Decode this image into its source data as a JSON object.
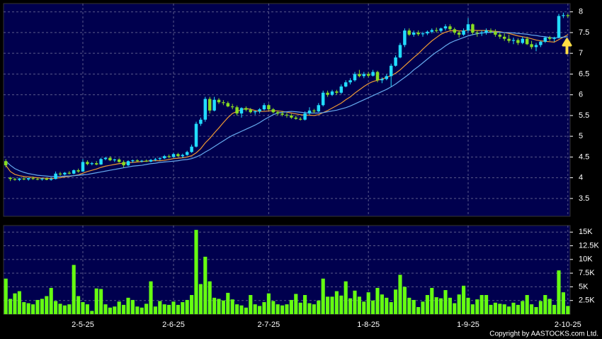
{
  "chart_data": {
    "type": "candlestick",
    "categories": [
      null,
      null,
      null,
      null,
      null,
      null,
      null,
      null,
      null,
      null,
      null,
      null,
      null,
      null,
      null,
      null,
      null,
      "2-5-25",
      null,
      null,
      null,
      null,
      null,
      null,
      null,
      null,
      null,
      null,
      null,
      null,
      null,
      null,
      null,
      null,
      null,
      null,
      null,
      "2-6-25",
      null,
      null,
      null,
      null,
      null,
      null,
      null,
      null,
      null,
      null,
      null,
      null,
      null,
      null,
      null,
      null,
      null,
      null,
      null,
      null,
      "2-7-25",
      null,
      null,
      null,
      null,
      null,
      null,
      null,
      null,
      null,
      null,
      null,
      null,
      null,
      null,
      null,
      null,
      null,
      null,
      null,
      null,
      null,
      "1-8-25",
      null,
      null,
      null,
      null,
      null,
      null,
      null,
      null,
      null,
      null,
      null,
      null,
      null,
      null,
      null,
      null,
      null,
      null,
      null,
      null,
      null,
      "1-9-25",
      null,
      null,
      null,
      null,
      null,
      null,
      null,
      null,
      null,
      null,
      null,
      null,
      null,
      null,
      null,
      null,
      null,
      null,
      null,
      null,
      null,
      "2-10-25"
    ],
    "ohlc": [
      [
        4.4,
        4.45,
        4.25,
        4.3
      ],
      [
        4.0,
        4.02,
        3.92,
        3.97
      ],
      [
        3.97,
        4.0,
        3.93,
        3.95
      ],
      [
        3.95,
        4.0,
        3.92,
        3.98
      ],
      [
        3.98,
        4.02,
        3.94,
        3.96
      ],
      [
        3.96,
        4.0,
        3.93,
        3.99
      ],
      [
        3.99,
        4.03,
        3.95,
        3.97
      ],
      [
        3.97,
        4.0,
        3.94,
        3.96
      ],
      [
        3.96,
        3.99,
        3.93,
        3.98
      ],
      [
        3.98,
        4.0,
        3.94,
        3.95
      ],
      [
        3.95,
        4.0,
        3.93,
        3.97
      ],
      [
        3.97,
        4.15,
        3.96,
        4.1
      ],
      [
        4.1,
        4.14,
        4.05,
        4.08
      ],
      [
        4.08,
        4.14,
        4.06,
        4.12
      ],
      [
        4.12,
        4.16,
        4.08,
        4.1
      ],
      [
        4.1,
        4.2,
        4.08,
        4.18
      ],
      [
        4.18,
        4.22,
        4.12,
        4.15
      ],
      [
        4.15,
        4.45,
        4.14,
        4.38
      ],
      [
        4.38,
        4.42,
        4.3,
        4.33
      ],
      [
        4.33,
        4.38,
        4.3,
        4.35
      ],
      [
        4.35,
        4.4,
        4.3,
        4.32
      ],
      [
        4.32,
        4.48,
        4.31,
        4.45
      ],
      [
        4.45,
        4.5,
        4.42,
        4.48
      ],
      [
        4.48,
        4.52,
        4.4,
        4.42
      ],
      [
        4.42,
        4.46,
        4.38,
        4.44
      ],
      [
        4.44,
        4.47,
        4.36,
        4.38
      ],
      [
        4.38,
        4.42,
        4.25,
        4.3
      ],
      [
        4.3,
        4.42,
        4.28,
        4.4
      ],
      [
        4.4,
        4.44,
        4.36,
        4.42
      ],
      [
        4.42,
        4.45,
        4.38,
        4.4
      ],
      [
        4.4,
        4.43,
        4.37,
        4.41
      ],
      [
        4.41,
        4.44,
        4.38,
        4.39
      ],
      [
        4.39,
        4.45,
        4.37,
        4.43
      ],
      [
        4.43,
        4.48,
        4.4,
        4.45
      ],
      [
        4.45,
        4.5,
        4.42,
        4.47
      ],
      [
        4.47,
        4.55,
        4.45,
        4.52
      ],
      [
        4.52,
        4.56,
        4.47,
        4.5
      ],
      [
        4.5,
        4.6,
        4.48,
        4.57
      ],
      [
        4.57,
        4.6,
        4.5,
        4.52
      ],
      [
        4.52,
        4.58,
        4.48,
        4.55
      ],
      [
        4.55,
        4.65,
        4.53,
        4.62
      ],
      [
        4.62,
        4.8,
        4.6,
        4.75
      ],
      [
        4.75,
        5.35,
        4.73,
        5.3
      ],
      [
        5.3,
        5.45,
        5.25,
        5.4
      ],
      [
        5.4,
        5.95,
        5.35,
        5.9
      ],
      [
        5.9,
        5.95,
        5.55,
        5.62
      ],
      [
        5.62,
        5.95,
        5.6,
        5.88
      ],
      [
        5.88,
        5.92,
        5.78,
        5.82
      ],
      [
        5.82,
        5.87,
        5.75,
        5.8
      ],
      [
        5.8,
        5.84,
        5.7,
        5.72
      ],
      [
        5.72,
        5.78,
        5.65,
        5.7
      ],
      [
        5.7,
        5.74,
        5.5,
        5.55
      ],
      [
        5.55,
        5.7,
        5.45,
        5.68
      ],
      [
        5.68,
        5.72,
        5.6,
        5.64
      ],
      [
        5.64,
        5.68,
        5.55,
        5.58
      ],
      [
        5.58,
        5.62,
        5.52,
        5.6
      ],
      [
        5.6,
        5.68,
        5.55,
        5.65
      ],
      [
        5.65,
        5.8,
        5.62,
        5.75
      ],
      [
        5.75,
        5.78,
        5.62,
        5.65
      ],
      [
        5.65,
        5.68,
        5.55,
        5.58
      ],
      [
        5.58,
        5.62,
        5.5,
        5.55
      ],
      [
        5.55,
        5.6,
        5.48,
        5.52
      ],
      [
        5.52,
        5.56,
        5.45,
        5.5
      ],
      [
        5.5,
        5.54,
        5.42,
        5.45
      ],
      [
        5.45,
        5.5,
        5.4,
        5.42
      ],
      [
        5.42,
        5.46,
        5.38,
        5.4
      ],
      [
        5.4,
        5.6,
        5.38,
        5.55
      ],
      [
        5.55,
        5.7,
        5.52,
        5.62
      ],
      [
        5.62,
        5.66,
        5.55,
        5.6
      ],
      [
        5.6,
        5.8,
        5.58,
        5.75
      ],
      [
        5.75,
        6.1,
        5.72,
        6.05
      ],
      [
        6.05,
        6.1,
        5.95,
        6.0
      ],
      [
        6.0,
        6.12,
        5.97,
        6.08
      ],
      [
        6.08,
        6.12,
        6.0,
        6.05
      ],
      [
        6.05,
        6.25,
        6.02,
        6.2
      ],
      [
        6.2,
        6.35,
        6.18,
        6.3
      ],
      [
        6.3,
        6.4,
        6.25,
        6.35
      ],
      [
        6.35,
        6.55,
        6.32,
        6.5
      ],
      [
        6.5,
        6.6,
        6.42,
        6.45
      ],
      [
        6.45,
        6.55,
        6.4,
        6.5
      ],
      [
        6.5,
        6.55,
        6.42,
        6.46
      ],
      [
        6.46,
        6.6,
        6.44,
        6.55
      ],
      [
        6.55,
        6.58,
        6.3,
        6.35
      ],
      [
        6.35,
        6.42,
        6.28,
        6.38
      ],
      [
        6.38,
        6.5,
        6.35,
        6.45
      ],
      [
        6.45,
        6.75,
        6.2,
        6.7
      ],
      [
        6.7,
        6.95,
        6.68,
        6.9
      ],
      [
        6.9,
        7.25,
        6.88,
        7.2
      ],
      [
        7.2,
        7.6,
        7.15,
        7.55
      ],
      [
        7.55,
        7.6,
        7.42,
        7.45
      ],
      [
        7.45,
        7.55,
        7.4,
        7.5
      ],
      [
        7.5,
        7.55,
        7.42,
        7.46
      ],
      [
        7.46,
        7.52,
        7.4,
        7.48
      ],
      [
        7.48,
        7.55,
        7.44,
        7.52
      ],
      [
        7.52,
        7.6,
        7.48,
        7.56
      ],
      [
        7.56,
        7.62,
        7.5,
        7.54
      ],
      [
        7.54,
        7.62,
        7.5,
        7.6
      ],
      [
        7.6,
        7.7,
        7.55,
        7.65
      ],
      [
        7.65,
        7.7,
        7.55,
        7.58
      ],
      [
        7.58,
        7.62,
        7.45,
        7.5
      ],
      [
        7.5,
        7.55,
        7.38,
        7.45
      ],
      [
        7.45,
        7.6,
        7.42,
        7.55
      ],
      [
        7.55,
        7.85,
        7.5,
        7.7
      ],
      [
        7.7,
        7.72,
        7.45,
        7.5
      ],
      [
        7.5,
        7.55,
        7.4,
        7.48
      ],
      [
        7.48,
        7.55,
        7.42,
        7.5
      ],
      [
        7.5,
        7.6,
        7.45,
        7.55
      ],
      [
        7.55,
        7.6,
        7.48,
        7.52
      ],
      [
        7.52,
        7.58,
        7.4,
        7.45
      ],
      [
        7.45,
        7.5,
        7.35,
        7.4
      ],
      [
        7.4,
        7.48,
        7.3,
        7.35
      ],
      [
        7.35,
        7.45,
        7.25,
        7.3
      ],
      [
        7.3,
        7.38,
        7.22,
        7.32
      ],
      [
        7.32,
        7.36,
        7.2,
        7.25
      ],
      [
        7.25,
        7.4,
        7.22,
        7.35
      ],
      [
        7.35,
        7.4,
        7.2,
        7.22
      ],
      [
        7.22,
        7.3,
        7.1,
        7.15
      ],
      [
        7.15,
        7.25,
        7.05,
        7.2
      ],
      [
        7.2,
        7.3,
        7.15,
        7.28
      ],
      [
        7.28,
        7.4,
        7.25,
        7.38
      ],
      [
        7.38,
        7.42,
        7.3,
        7.35
      ],
      [
        7.35,
        7.4,
        7.28,
        7.38
      ],
      [
        7.38,
        7.95,
        7.36,
        7.9
      ],
      [
        7.9,
        7.98,
        7.85,
        7.92
      ],
      [
        7.92,
        7.95,
        7.86,
        7.9
      ]
    ],
    "up_color": "#22ddff",
    "down_color": "#88dd22",
    "ylim": [
      3.07,
      8.2
    ],
    "yticks": [
      3.5,
      4,
      4.5,
      5,
      5.5,
      6,
      6.5,
      7,
      7.5,
      8
    ],
    "grid": true,
    "moving_averages": [
      {
        "color": "#ee9933",
        "values": [
          4.3,
          4.15,
          4.08,
          4.05,
          4.03,
          4.02,
          4.01,
          4.0,
          3.99,
          3.99,
          3.98,
          3.99,
          4.0,
          4.02,
          4.03,
          4.05,
          4.07,
          4.11,
          4.15,
          4.18,
          4.21,
          4.25,
          4.28,
          4.3,
          4.32,
          4.34,
          4.35,
          4.36,
          4.37,
          4.38,
          4.39,
          4.4,
          4.41,
          4.41,
          4.41,
          4.42,
          4.44,
          4.46,
          4.47,
          4.48,
          4.5,
          4.53,
          4.6,
          4.7,
          4.84,
          4.95,
          5.08,
          5.2,
          5.33,
          5.45,
          5.55,
          5.6,
          5.64,
          5.67,
          5.65,
          5.62,
          5.6,
          5.6,
          5.61,
          5.62,
          5.61,
          5.6,
          5.58,
          5.56,
          5.54,
          5.52,
          5.51,
          5.51,
          5.5,
          5.52,
          5.57,
          5.62,
          5.68,
          5.74,
          5.8,
          5.88,
          5.95,
          6.04,
          6.12,
          6.2,
          6.27,
          6.32,
          6.35,
          6.38,
          6.42,
          6.46,
          6.52,
          6.6,
          6.7,
          6.8,
          6.9,
          6.99,
          7.1,
          7.2,
          7.3,
          7.38,
          7.46,
          7.51,
          7.54,
          7.55,
          7.54,
          7.54,
          7.56,
          7.56,
          7.55,
          7.55,
          7.55,
          7.54,
          7.53,
          7.52,
          7.5,
          7.48,
          7.45,
          7.42,
          7.4,
          7.38,
          7.35,
          7.32,
          7.3,
          7.29,
          7.28,
          7.27,
          7.33,
          7.39,
          7.45
        ]
      },
      {
        "color": "#66aaee",
        "values": [
          4.4,
          4.3,
          4.22,
          4.17,
          4.13,
          4.1,
          4.08,
          4.06,
          4.05,
          4.04,
          4.03,
          4.03,
          4.03,
          4.04,
          4.04,
          4.05,
          4.06,
          4.07,
          4.08,
          4.1,
          4.12,
          4.14,
          4.16,
          4.18,
          4.2,
          4.22,
          4.24,
          4.26,
          4.28,
          4.29,
          4.3,
          4.32,
          4.34,
          4.35,
          4.37,
          4.38,
          4.39,
          4.4,
          4.41,
          4.43,
          4.44,
          4.46,
          4.5,
          4.55,
          4.62,
          4.68,
          4.75,
          4.82,
          4.89,
          4.96,
          5.02,
          5.07,
          5.12,
          5.17,
          5.22,
          5.27,
          5.33,
          5.4,
          5.46,
          5.52,
          5.56,
          5.58,
          5.59,
          5.6,
          5.59,
          5.58,
          5.57,
          5.56,
          5.56,
          5.56,
          5.57,
          5.59,
          5.61,
          5.63,
          5.66,
          5.69,
          5.73,
          5.78,
          5.83,
          5.88,
          5.93,
          5.98,
          6.03,
          6.08,
          6.13,
          6.19,
          6.26,
          6.34,
          6.42,
          6.5,
          6.6,
          6.68,
          6.77,
          6.86,
          6.95,
          7.03,
          7.1,
          7.18,
          7.25,
          7.3,
          7.34,
          7.38,
          7.42,
          7.45,
          7.47,
          7.49,
          7.5,
          7.51,
          7.51,
          7.51,
          7.5,
          7.5,
          7.49,
          7.48,
          7.47,
          7.46,
          7.44,
          7.43,
          7.41,
          7.4,
          7.38,
          7.37,
          7.38,
          7.39,
          7.4
        ]
      }
    ],
    "volume": {
      "color": "#66ff11",
      "values": [
        6500,
        2800,
        3800,
        4200,
        2200,
        2000,
        1800,
        2600,
        2800,
        3300,
        4800,
        2400,
        1900,
        1600,
        1800,
        9000,
        3300,
        2200,
        1800,
        600,
        4700,
        4600,
        1800,
        1200,
        1400,
        2300,
        1700,
        3000,
        2600,
        1400,
        1200,
        1900,
        6000,
        1400,
        2400,
        1800,
        1700,
        2300,
        1700,
        2200,
        2600,
        3500,
        15400,
        5500,
        10500,
        6000,
        3000,
        2800,
        2500,
        3900,
        2700,
        1800,
        1600,
        1200,
        3500,
        1800,
        1500,
        2200,
        3800,
        2400,
        1800,
        1600,
        1800,
        2600,
        3700,
        2100,
        3500,
        2000,
        1800,
        2500,
        6500,
        3200,
        3200,
        4200,
        3400,
        6000,
        2900,
        4300,
        3200,
        2300,
        4000,
        2500,
        4800,
        3600,
        3000,
        2200,
        4500,
        7200,
        5000,
        3000,
        2600,
        1300,
        2300,
        3500,
        4800,
        3100,
        2900,
        4400,
        3000,
        2000,
        3600,
        5200,
        3000,
        1800,
        2700,
        3500,
        3500,
        1700,
        2100,
        1900,
        1800,
        1400,
        2100,
        1700,
        2400,
        3500,
        1800,
        1300,
        2400,
        3500,
        2800,
        1700,
        8000,
        4000,
        1500
      ],
      "ylim": [
        0,
        16200
      ],
      "yticks": [
        {
          "value": 2500,
          "label": "2.5K"
        },
        {
          "value": 5000,
          "label": "5K"
        },
        {
          "value": 7500,
          "label": "7.5K"
        },
        {
          "value": 10000,
          "label": "10K"
        },
        {
          "value": 12500,
          "label": "12.5K"
        },
        {
          "value": 15000,
          "label": "15K"
        }
      ]
    }
  },
  "copyright": "Copyright by AASTOCKS.com Ltd."
}
